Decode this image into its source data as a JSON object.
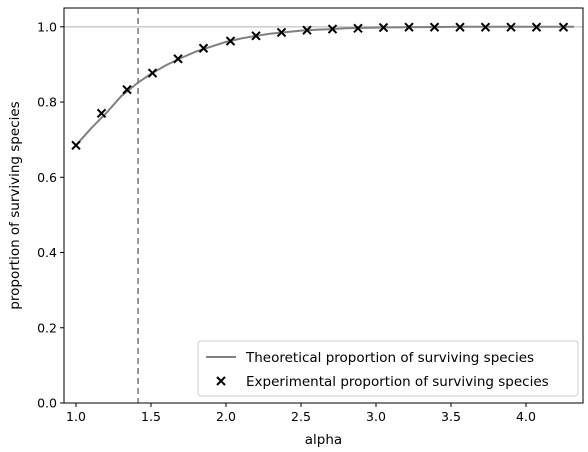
{
  "chart_data": {
    "type": "line",
    "title": "",
    "xlabel": "alpha",
    "ylabel": "proportion of surviving species",
    "xlim": [
      0.92,
      4.38
    ],
    "ylim": [
      0.0,
      1.05
    ],
    "x_ticks": [
      1.0,
      1.5,
      2.0,
      2.5,
      3.0,
      3.5,
      4.0
    ],
    "x_tick_labels": [
      "1.0",
      "1.5",
      "2.0",
      "2.5",
      "3.0",
      "3.5",
      "4.0"
    ],
    "y_ticks": [
      0.0,
      0.2,
      0.4,
      0.6,
      0.8,
      1.0
    ],
    "y_tick_labels": [
      "0.0",
      "0.2",
      "0.4",
      "0.6",
      "0.8",
      "1.0"
    ],
    "grid": false,
    "legend_position": "lower-right",
    "hline": {
      "y": 1.0,
      "color": "#c8c8c8"
    },
    "vline": {
      "x": 1.414,
      "color": "#7f7f7f",
      "style": "dashed"
    },
    "series": [
      {
        "name": "Theoretical proportion of surviving species",
        "type": "line",
        "color": "#808080",
        "x": [
          1.0,
          1.1,
          1.2,
          1.3,
          1.414,
          1.5,
          1.6,
          1.7,
          1.8,
          1.9,
          2.0,
          2.1,
          2.2,
          2.3,
          2.4,
          2.5,
          2.6,
          2.7,
          2.8,
          2.9,
          3.0,
          3.2,
          3.4,
          3.6,
          3.8,
          4.0,
          4.2,
          4.32
        ],
        "y": [
          0.685,
          0.73,
          0.77,
          0.815,
          0.852,
          0.875,
          0.898,
          0.917,
          0.934,
          0.947,
          0.96,
          0.969,
          0.976,
          0.982,
          0.986,
          0.99,
          0.992,
          0.994,
          0.996,
          0.997,
          0.998,
          0.999,
          0.9995,
          1.0,
          1.0,
          1.0,
          1.0,
          1.0
        ]
      },
      {
        "name": "Experimental proportion of surviving species",
        "type": "scatter",
        "marker": "x",
        "color": "#000000",
        "x": [
          1.0,
          1.17,
          1.34,
          1.51,
          1.68,
          1.85,
          2.03,
          2.2,
          2.37,
          2.54,
          2.71,
          2.88,
          3.05,
          3.22,
          3.39,
          3.56,
          3.73,
          3.9,
          4.07,
          4.25
        ],
        "y": [
          0.685,
          0.77,
          0.833,
          0.877,
          0.915,
          0.943,
          0.962,
          0.976,
          0.985,
          0.991,
          0.994,
          0.996,
          0.998,
          0.999,
          0.999,
          0.999,
          0.999,
          0.999,
          0.999,
          0.999
        ]
      }
    ]
  }
}
